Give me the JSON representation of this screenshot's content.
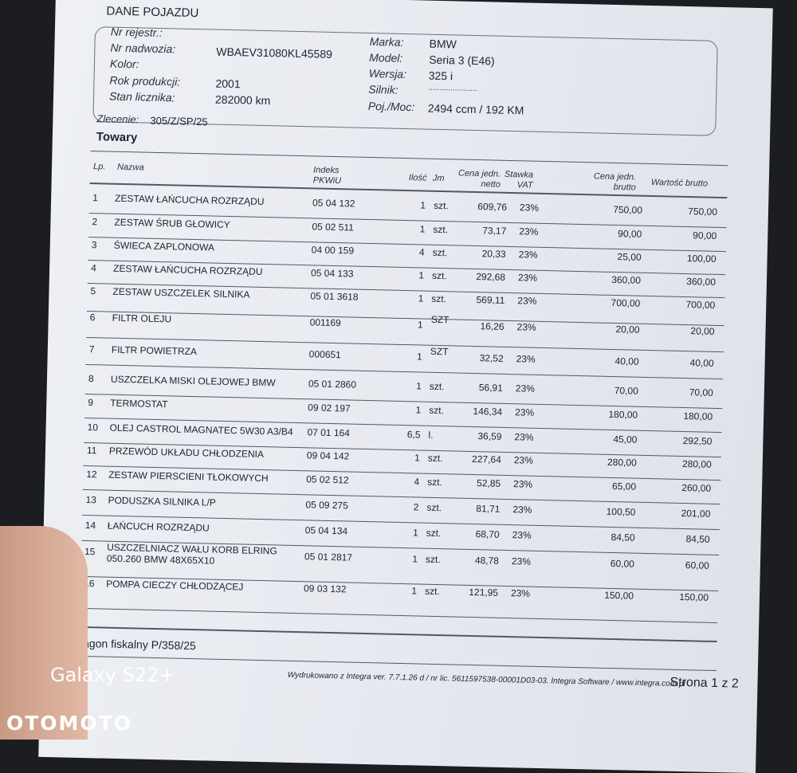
{
  "vehicle": {
    "section_title": "DANE POJAZDU",
    "labels": {
      "reg": "Nr rejestr.:",
      "vin": "Nr nadwozia:",
      "color": "Kolor:",
      "year": "Rok produkcji:",
      "mileage": "Stan licznika:",
      "make": "Marka:",
      "model": "Model:",
      "version": "Wersja:",
      "engine": "Silnik:",
      "capacity": "Poj./Moc:"
    },
    "vin": "WBAEV31080KL45589",
    "year": "2001",
    "mileage": "282000 km",
    "make": "BMW",
    "model": "Seria 3 (E46)",
    "version": "325 i",
    "engine": "......................",
    "capacity": "2494 ccm / 192 KM"
  },
  "order": {
    "label": "Zlecenie:",
    "value": "305/Z/SP/25"
  },
  "goods_title": "Towary",
  "columns": {
    "lp": "Lp.",
    "name": "Nazwa",
    "index": "Indeks",
    "pkwiu": "PKWiU",
    "qty": "Ilość",
    "unit": "Jm",
    "net1": "Cena jedn.",
    "net2": "netto",
    "vat1": "Stawka",
    "vat2": "VAT",
    "gross1": "Cena jedn.",
    "gross2": "brutto",
    "total": "Wartość brutto"
  },
  "rows": [
    [
      "1",
      "ZESTAW ŁAŃCUCHA ROZRZĄDU",
      "05 04 132",
      "1",
      "szt.",
      "609,76",
      "23%",
      "750,00",
      "750,00"
    ],
    [
      "2",
      "ZESTAW ŚRUB GŁOWICY",
      "05 02 511",
      "1",
      "szt.",
      "73,17",
      "23%",
      "90,00",
      "90,00"
    ],
    [
      "3",
      "ŚWIECA ZAPLONOWA",
      "04 00 159",
      "4",
      "szt.",
      "20,33",
      "23%",
      "25,00",
      "100,00"
    ],
    [
      "4",
      "ZESTAW ŁAŃCUCHA ROZRZĄDU",
      "05 04 133",
      "1",
      "szt.",
      "292,68",
      "23%",
      "360,00",
      "360,00"
    ],
    [
      "5",
      "ZESTAW USZCZELEK SILNIKA",
      "05 01 3618",
      "1",
      "szt.",
      "569,11",
      "23%",
      "700,00",
      "700,00"
    ],
    [
      "6",
      "FILTR OLEJU",
      "001169",
      "1",
      "SZT",
      "16,26",
      "23%",
      "20,00",
      "20,00"
    ],
    [
      "7",
      "FILTR POWIETRZA",
      "000651",
      "1",
      "SZT",
      "32,52",
      "23%",
      "40,00",
      "40,00"
    ],
    [
      "8",
      "USZCZELKA MISKI OLEJOWEJ BMW",
      "05 01 2860",
      "1",
      "szt.",
      "56,91",
      "23%",
      "70,00",
      "70,00"
    ],
    [
      "9",
      "TERMOSTAT",
      "09 02 197",
      "1",
      "szt.",
      "146,34",
      "23%",
      "180,00",
      "180,00"
    ],
    [
      "10",
      "OLEJ CASTROL MAGNATEC 5W30 A3/B4",
      "07 01 164",
      "6,5",
      "l.",
      "36,59",
      "23%",
      "45,00",
      "292,50"
    ],
    [
      "11",
      "PRZEWÓD UKŁADU CHŁODZENIA",
      "09 04 142",
      "1",
      "szt.",
      "227,64",
      "23%",
      "280,00",
      "280,00"
    ],
    [
      "12",
      "ZESTAW PIERSCIENI TŁOKOWYCH",
      "05 02 512",
      "4",
      "szt.",
      "52,85",
      "23%",
      "65,00",
      "260,00"
    ],
    [
      "13",
      "PODUSZKA SILNIKA L/P",
      "05 09 275",
      "2",
      "szt.",
      "81,71",
      "23%",
      "100,50",
      "201,00"
    ],
    [
      "14",
      "ŁAŃCUCH ROZRZĄDU",
      "05 04 134",
      "1",
      "szt.",
      "68,70",
      "23%",
      "84,50",
      "84,50"
    ],
    [
      "15",
      "USZCZELNIACZ WAŁU KORB ELRING 050.260 BMW 48X65X10",
      "05 01 2817",
      "1",
      "szt.",
      "48,78",
      "23%",
      "60,00",
      "60,00"
    ],
    [
      "16",
      "POMPA CIECZY CHŁODZĄCEJ",
      "09 03 132",
      "1",
      "szt.",
      "121,95",
      "23%",
      "150,00",
      "150,00"
    ]
  ],
  "receipt": "ragon fiskalny  P/358/25",
  "footer": {
    "printed": "Wydrukowano z Integra ver. 7.7.1.26 d / nr lic. 5611597538-00001D03-03. Integra Software / www.integra.com.pl",
    "page": "Strona 1 z 2"
  },
  "watermarks": {
    "device": "Galaxy S22+",
    "brand": "OTOMOTO"
  }
}
